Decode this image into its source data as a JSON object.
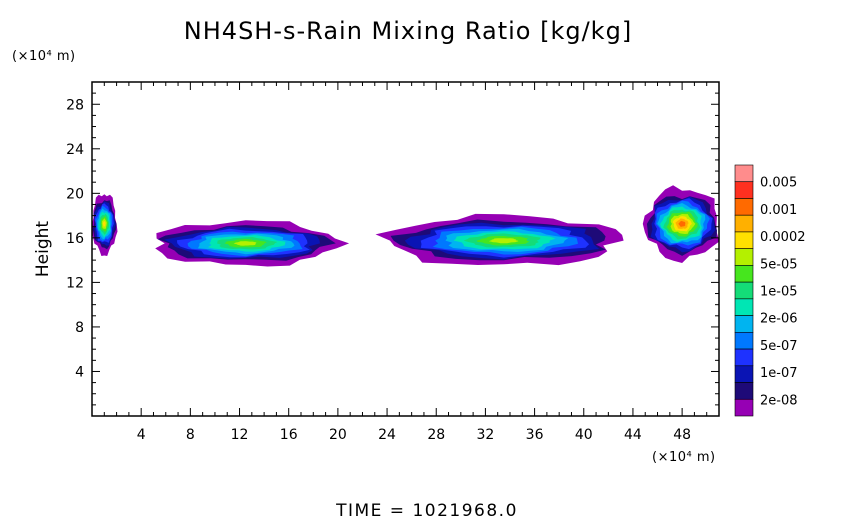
{
  "chart_data": {
    "type": "heatmap",
    "title": "NH4SH-s-Rain Mixing Ratio [kg/kg]",
    "ylabel": "Height",
    "xlabel": "",
    "x_unit": "(×10⁴ m)",
    "y_unit": "(×10⁴ m)",
    "xlim": [
      0,
      51
    ],
    "ylim": [
      0,
      30
    ],
    "x_ticks": [
      "4",
      "8",
      "12",
      "16",
      "20",
      "24",
      "28",
      "32",
      "36",
      "40",
      "44",
      "48"
    ],
    "y_ticks": [
      "4",
      "8",
      "12",
      "16",
      "20",
      "24",
      "28"
    ],
    "colorbar": {
      "labels": [
        "0.005",
        "0.001",
        "0.0002",
        "5e-05",
        "1e-05",
        "2e-06",
        "5e-07",
        "1e-07",
        "2e-08"
      ],
      "colors": [
        "#ff8c8c",
        "#ff3020",
        "#ff6a00",
        "#ffb000",
        "#ffe000",
        "#b4f000",
        "#46e61e",
        "#14dc78",
        "#00e6b4",
        "#00b4f0",
        "#0078ff",
        "#1e32ff",
        "#0a14b4",
        "#1e0a78",
        "#9600b4"
      ]
    },
    "regions": [
      {
        "name": "cloud-left-edge",
        "x": [
          0,
          2
        ],
        "y": [
          14.5,
          20
        ],
        "peak_level": 4
      },
      {
        "name": "cloud-band-left",
        "x": [
          5,
          20
        ],
        "y": [
          13.5,
          17.5
        ],
        "peak_level": 5
      },
      {
        "name": "cloud-band-middle",
        "x": [
          24,
          43
        ],
        "y": [
          13.5,
          18
        ],
        "peak_level": 5
      },
      {
        "name": "cloud-right-edge",
        "x": [
          45,
          51
        ],
        "y": [
          14,
          20.5
        ],
        "peak_level": 2
      }
    ],
    "grid": false,
    "time_label": "TIME = 1021968.0"
  }
}
